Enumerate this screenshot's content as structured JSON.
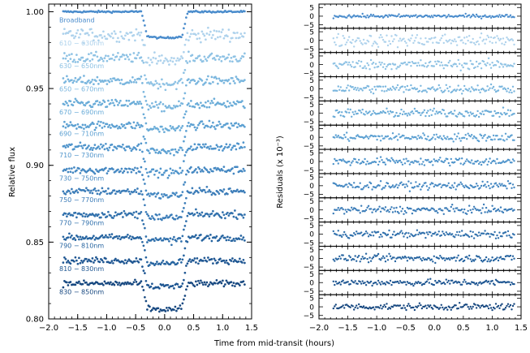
{
  "chart_data": [
    {
      "type": "scatter",
      "panel": "light-curves",
      "xlabel": "Time from mid-transit (hours)",
      "ylabel": "Relative flux",
      "xlim": [
        -2.0,
        1.5
      ],
      "ylim": [
        0.8,
        1.005
      ],
      "xticks": [
        "−2.0",
        "−1.5",
        "−1.0",
        "−0.5",
        "0.0",
        "0.5",
        "1.0",
        "1.5"
      ],
      "yticks": [
        "0.80",
        "0.85",
        "0.90",
        "0.95",
        "1.00"
      ],
      "transit": {
        "t14_hours": [
          -0.4,
          0.4
        ],
        "depth": 0.017,
        "data_x_range": [
          -1.75,
          1.38
        ]
      },
      "series": [
        {
          "name": "Broadband",
          "baseline": 1.0,
          "color": "#4a8ccc"
        },
        {
          "name": "610 − 630nm",
          "baseline": 0.985,
          "color": "#aed2ec"
        },
        {
          "name": "630 − 650nm",
          "baseline": 0.97,
          "color": "#8ec2e4"
        },
        {
          "name": "650 − 670nm",
          "baseline": 0.955,
          "color": "#7ab6de"
        },
        {
          "name": "670 − 690nm",
          "baseline": 0.94,
          "color": "#6aacd8"
        },
        {
          "name": "690 − 710nm",
          "baseline": 0.926,
          "color": "#5ca0d2"
        },
        {
          "name": "710 − 730nm",
          "baseline": 0.912,
          "color": "#4f94cb"
        },
        {
          "name": "730 − 750nm",
          "baseline": 0.897,
          "color": "#4588c2"
        },
        {
          "name": "750 − 770nm",
          "baseline": 0.883,
          "color": "#3b7cb8"
        },
        {
          "name": "770 − 790nm",
          "baseline": 0.868,
          "color": "#3070ac"
        },
        {
          "name": "790 − 810nm",
          "baseline": 0.853,
          "color": "#2664a0"
        },
        {
          "name": "810 − 830nm",
          "baseline": 0.838,
          "color": "#1e5692"
        },
        {
          "name": "830 − 850nm",
          "baseline": 0.823,
          "color": "#174880"
        }
      ]
    },
    {
      "type": "scatter",
      "panel": "residuals",
      "xlabel": "Time from mid-transit (hours)",
      "ylabel": "Residuals (x 10⁻³)",
      "xlim": [
        -2.0,
        1.5
      ],
      "ylim_each": [
        -7,
        7
      ],
      "xticks": [
        "−2.0",
        "−1.5",
        "−1.0",
        "−0.5",
        "0.0",
        "0.5",
        "1.0",
        "1.5"
      ],
      "panel_yticks": [
        "5",
        "0",
        "−5"
      ],
      "panel_colors": [
        "#4a8ccc",
        "#aed2ec",
        "#8ec2e4",
        "#7ab6de",
        "#6aacd8",
        "#5ca0d2",
        "#4f94cb",
        "#4588c2",
        "#3b7cb8",
        "#3070ac",
        "#2664a0",
        "#1e5692",
        "#174880"
      ],
      "panel_scatter": [
        0.7,
        2.6,
        1.9,
        1.8,
        1.7,
        1.6,
        1.6,
        1.5,
        1.5,
        1.5,
        1.4,
        1.3,
        1.3
      ]
    }
  ]
}
